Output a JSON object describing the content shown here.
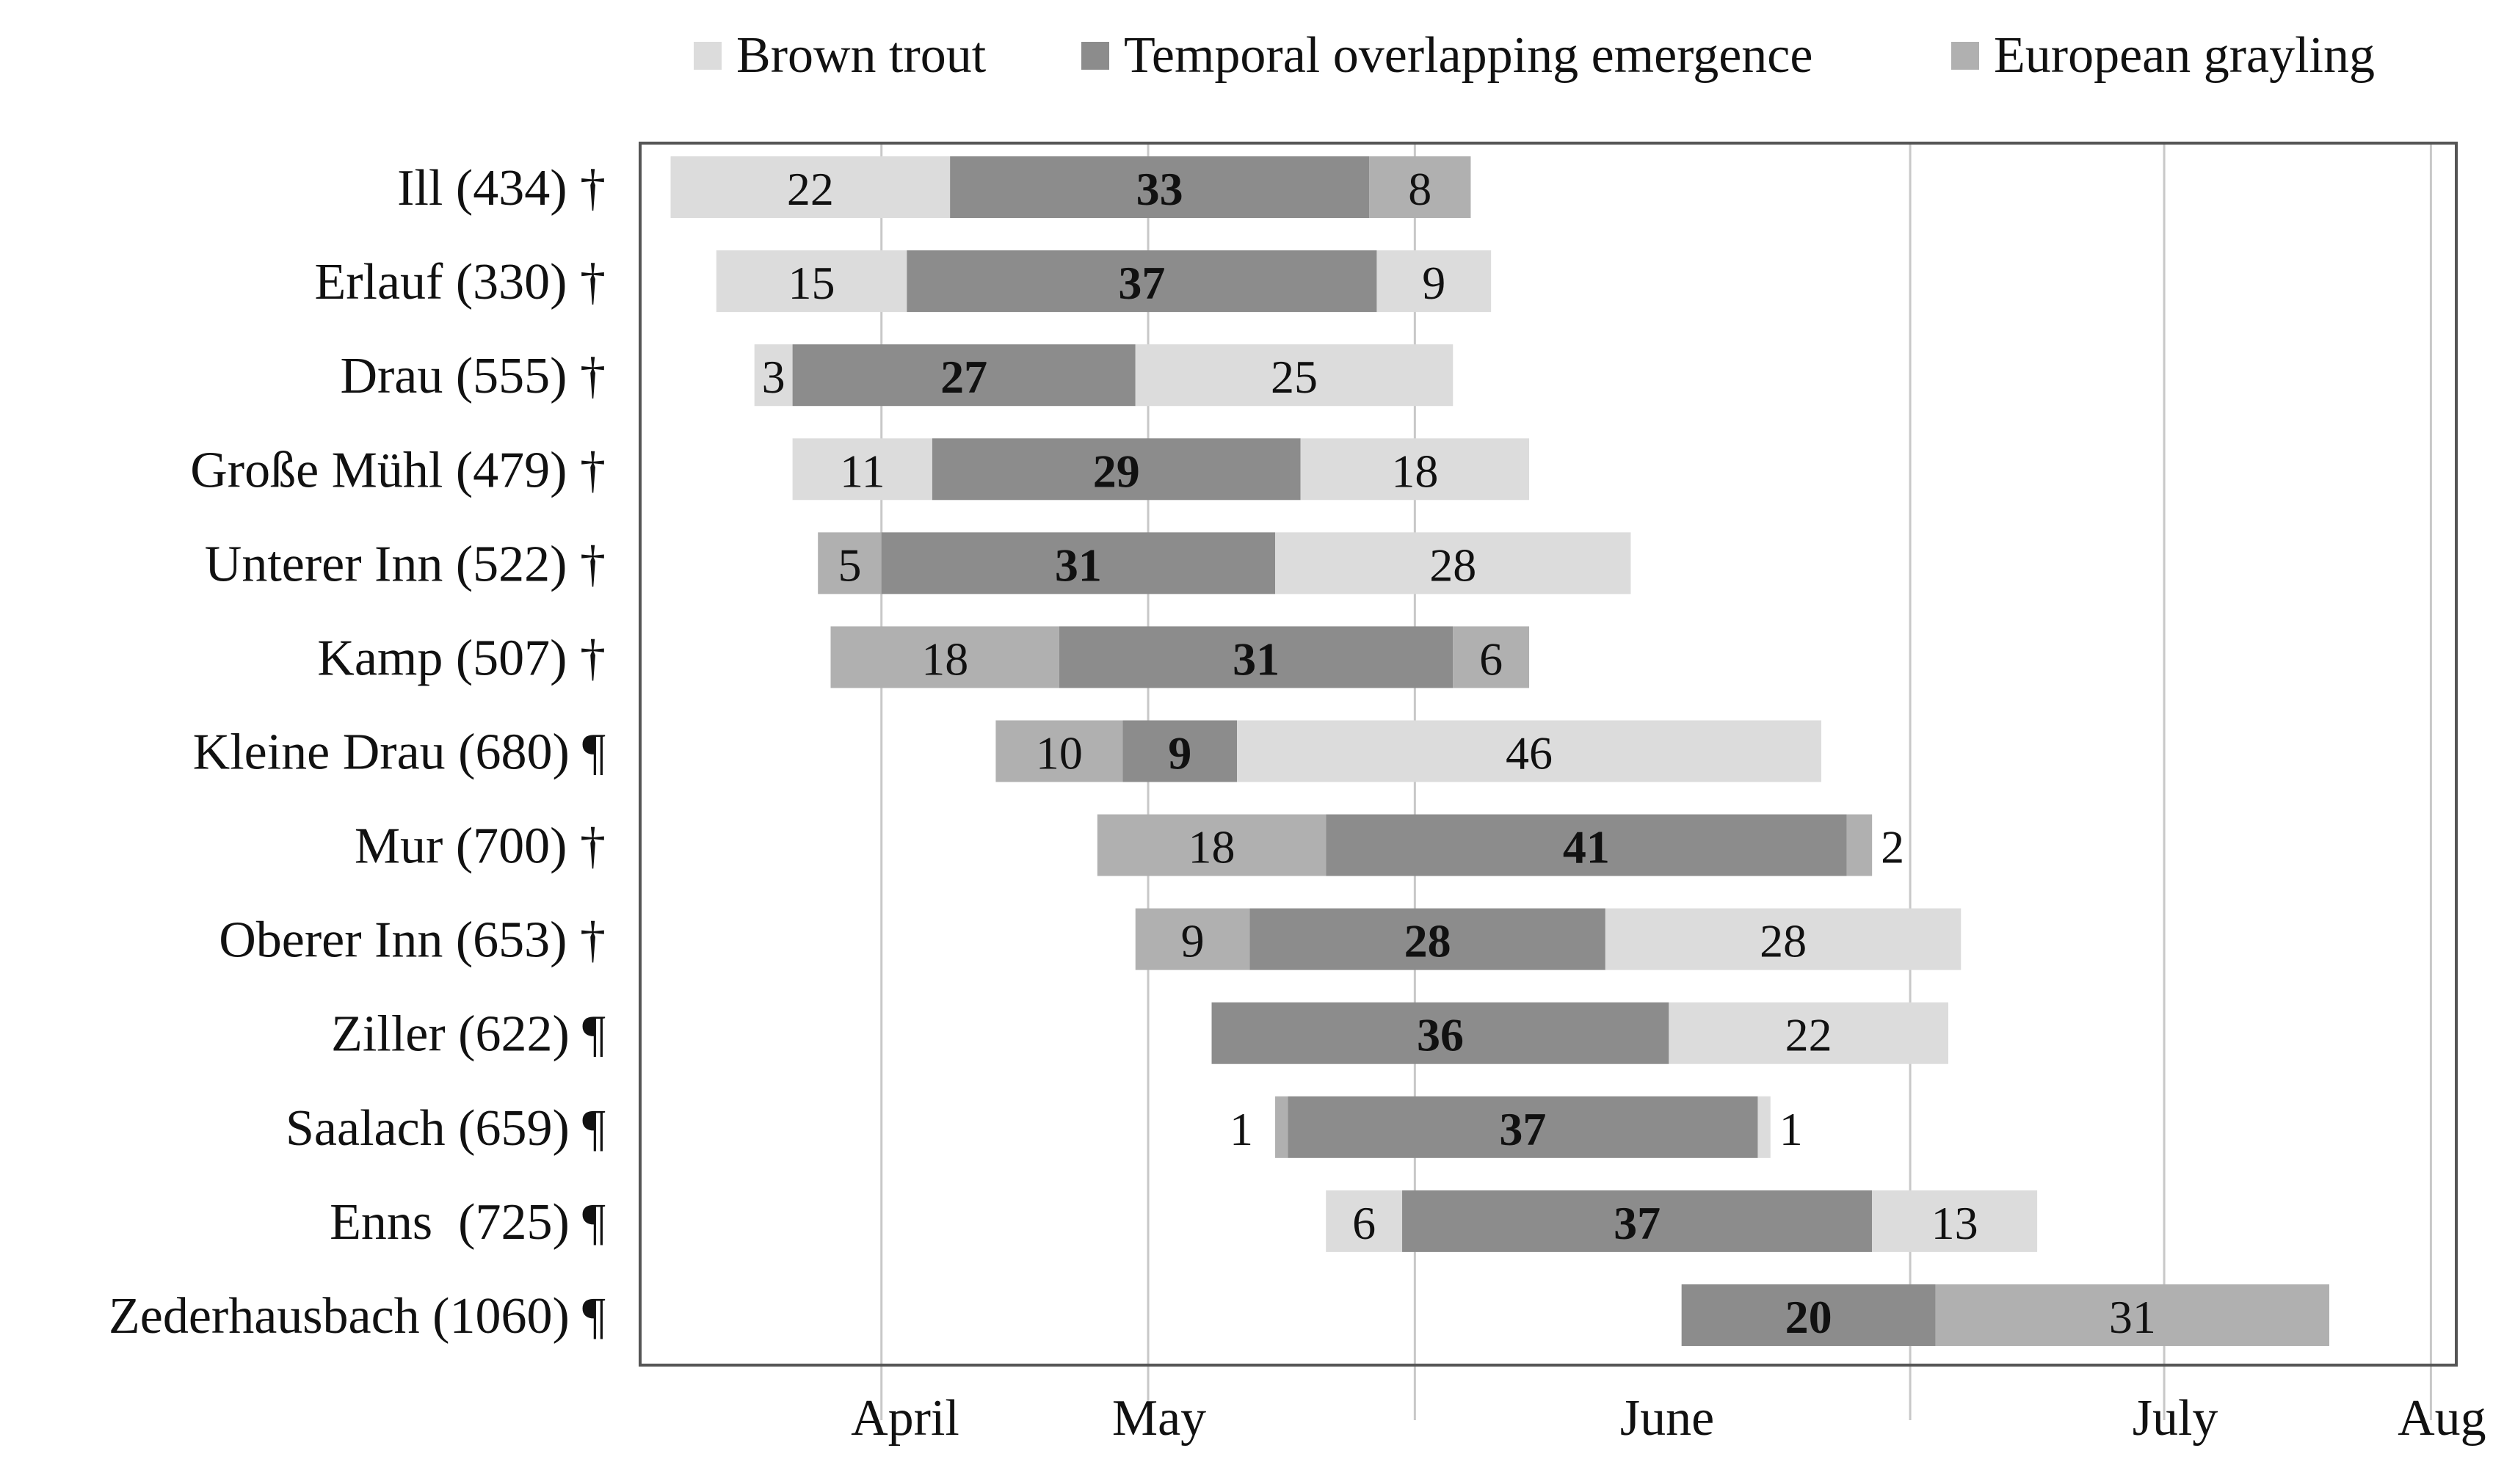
{
  "chart_data": {
    "type": "bar",
    "subtype": "horizontal-stacked-range",
    "title": "",
    "xlabel": "",
    "ylabel": "",
    "x_unit": "days from 1 April",
    "xlim": [
      -20,
      123
    ],
    "month_ticks": [
      {
        "label": "April",
        "day": 0
      },
      {
        "label": "May",
        "day": 20
      },
      {
        "label": "June",
        "day": 60
      },
      {
        "label": "July",
        "day": 100
      },
      {
        "label": "Aug",
        "day": 121
      }
    ],
    "gridlines": [
      -1,
      20,
      41,
      80,
      100,
      121
    ],
    "legend": {
      "position": "top",
      "entries": [
        {
          "key": "brown",
          "label": "Brown trout",
          "color": "#dcdcdc"
        },
        {
          "key": "overlap",
          "label": "Temporal overlapping emergence",
          "color": "#8c8c8c"
        },
        {
          "key": "grayling",
          "label": "European grayling",
          "color": "#b0b0b0"
        }
      ]
    },
    "rows": [
      {
        "name": "Ill (434) †",
        "start": -17.6,
        "segments": [
          {
            "type": "brown",
            "value": 22,
            "label": "22"
          },
          {
            "type": "overlap",
            "value": 33,
            "label": "33"
          },
          {
            "type": "grayling",
            "value": 8,
            "label": "8"
          }
        ]
      },
      {
        "name": "Erlauf (330) †",
        "start": -14,
        "segments": [
          {
            "type": "brown",
            "value": 15,
            "label": "15"
          },
          {
            "type": "overlap",
            "value": 37,
            "label": "37"
          },
          {
            "type": "brown",
            "value": 9,
            "label": "9"
          }
        ]
      },
      {
        "name": "Drau (555) †",
        "start": -11,
        "segments": [
          {
            "type": "brown",
            "value": 3,
            "label": "3"
          },
          {
            "type": "overlap",
            "value": 27,
            "label": "27"
          },
          {
            "type": "brown",
            "value": 25,
            "label": "25"
          }
        ]
      },
      {
        "name": "Große Mühl (479) †",
        "start": -8,
        "segments": [
          {
            "type": "brown",
            "value": 11,
            "label": "11"
          },
          {
            "type": "overlap",
            "value": 29,
            "label": "29"
          },
          {
            "type": "brown",
            "value": 18,
            "label": "18"
          }
        ]
      },
      {
        "name": "Unterer Inn (522) †",
        "start": -6,
        "segments": [
          {
            "type": "grayling",
            "value": 5,
            "label": "5"
          },
          {
            "type": "overlap",
            "value": 31,
            "label": "31"
          },
          {
            "type": "brown",
            "value": 28,
            "label": "28"
          }
        ]
      },
      {
        "name": "Kamp (507) †",
        "start": -5,
        "segments": [
          {
            "type": "grayling",
            "value": 18,
            "label": "18"
          },
          {
            "type": "overlap",
            "value": 31,
            "label": "31"
          },
          {
            "type": "grayling",
            "value": 6,
            "label": "6"
          }
        ]
      },
      {
        "name": "Kleine Drau (680) ¶",
        "start": 8,
        "segments": [
          {
            "type": "grayling",
            "value": 10,
            "label": "10"
          },
          {
            "type": "overlap",
            "value": 9,
            "label": "9"
          },
          {
            "type": "brown",
            "value": 46,
            "label": "46"
          }
        ]
      },
      {
        "name": "Mur (700) †",
        "start": 16,
        "segments": [
          {
            "type": "grayling",
            "value": 18,
            "label": "18"
          },
          {
            "type": "overlap",
            "value": 41,
            "label": "41"
          },
          {
            "type": "grayling",
            "value": 2,
            "label": "2",
            "label_outside": true
          }
        ]
      },
      {
        "name": "Oberer Inn (653) †",
        "start": 19,
        "segments": [
          {
            "type": "grayling",
            "value": 9,
            "label": "9"
          },
          {
            "type": "overlap",
            "value": 28,
            "label": "28"
          },
          {
            "type": "brown",
            "value": 28,
            "label": "28"
          }
        ]
      },
      {
        "name": "Ziller (622) ¶",
        "start": 25,
        "segments": [
          {
            "type": "overlap",
            "value": 36,
            "label": "36"
          },
          {
            "type": "brown",
            "value": 22,
            "label": "22"
          }
        ]
      },
      {
        "name": "Saalach (659) ¶",
        "start": 30,
        "segments": [
          {
            "type": "grayling",
            "value": 1,
            "label": "1",
            "label_outside": "left"
          },
          {
            "type": "overlap",
            "value": 37,
            "label": "37"
          },
          {
            "type": "brown",
            "value": 1,
            "label": "1",
            "label_outside": true
          }
        ]
      },
      {
        "name": "Enns  (725) ¶",
        "start": 34,
        "segments": [
          {
            "type": "brown",
            "value": 6,
            "label": "6"
          },
          {
            "type": "overlap",
            "value": 37,
            "label": "37"
          },
          {
            "type": "brown",
            "value": 13,
            "label": "13"
          }
        ]
      },
      {
        "name": "Zederhausbach (1060) ¶",
        "start": 62,
        "segments": [
          {
            "type": "overlap",
            "value": 20,
            "label": "20"
          },
          {
            "type": "grayling",
            "value": 31,
            "label": "31"
          }
        ]
      }
    ]
  }
}
